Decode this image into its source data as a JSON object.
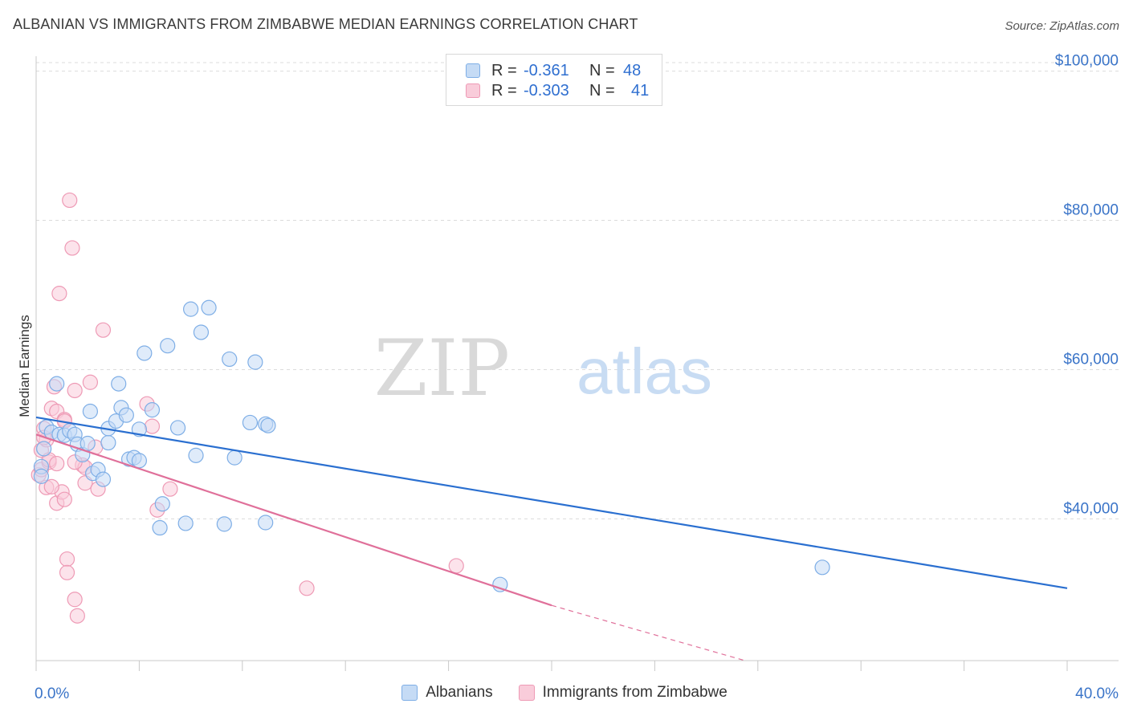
{
  "header": {
    "title": "ALBANIAN VS IMMIGRANTS FROM ZIMBABWE MEDIAN EARNINGS CORRELATION CHART",
    "source": "Source: ZipAtlas.com"
  },
  "legend_top": {
    "rows": [
      {
        "r_label": "R =",
        "r_value": "-0.361",
        "n_label": "N =",
        "n_value": "48"
      },
      {
        "r_label": "R =",
        "r_value": "-0.303",
        "n_label": "N =",
        "n_value": "41"
      }
    ]
  },
  "legend_bottom": {
    "items": [
      "Albanians",
      "Immigrants from Zimbabwe"
    ]
  },
  "watermark": {
    "part1": "ZIP",
    "part2": "atlas"
  },
  "colors": {
    "blue_fill": "#c5dbf5",
    "blue_stroke": "#7eaee6",
    "blue_line": "#2a6fd0",
    "pink_fill": "#f9ccda",
    "pink_stroke": "#ee9ab5",
    "pink_line": "#e0709a",
    "tick_label": "#3a74c8",
    "grid": "#dcdcdc"
  },
  "chart_data": {
    "type": "scatter",
    "title": "ALBANIAN VS IMMIGRANTS FROM ZIMBABWE MEDIAN EARNINGS CORRELATION CHART",
    "xlabel": "",
    "ylabel": "Median Earnings",
    "xlim": [
      0,
      40
    ],
    "ylim": [
      21000,
      102000
    ],
    "x_tick_labels": [
      "0.0%",
      "40.0%"
    ],
    "y_ticks": [
      40000,
      60000,
      80000,
      100000
    ],
    "y_tick_labels": [
      "$40,000",
      "$60,000",
      "$80,000",
      "$100,000"
    ],
    "grid": true,
    "legend_placement": "bottom",
    "series": [
      {
        "name": "Albanians",
        "r": -0.361,
        "n": 48,
        "trend": {
          "x": [
            0,
            40
          ],
          "y": [
            53600,
            30700
          ]
        },
        "points": [
          [
            0.2,
            47000
          ],
          [
            0.2,
            45700
          ],
          [
            0.3,
            49400
          ],
          [
            0.4,
            52300
          ],
          [
            0.6,
            51600
          ],
          [
            0.8,
            58100
          ],
          [
            0.9,
            51300
          ],
          [
            1.1,
            51200
          ],
          [
            1.3,
            51800
          ],
          [
            1.5,
            51300
          ],
          [
            1.6,
            50000
          ],
          [
            1.8,
            48600
          ],
          [
            2.0,
            50100
          ],
          [
            2.1,
            54400
          ],
          [
            2.2,
            46100
          ],
          [
            2.4,
            46600
          ],
          [
            2.6,
            45300
          ],
          [
            2.8,
            50200
          ],
          [
            2.8,
            52100
          ],
          [
            3.1,
            53100
          ],
          [
            3.2,
            58100
          ],
          [
            3.3,
            54900
          ],
          [
            3.5,
            53900
          ],
          [
            3.6,
            48000
          ],
          [
            3.8,
            48200
          ],
          [
            4.0,
            52000
          ],
          [
            4.0,
            47800
          ],
          [
            4.2,
            62200
          ],
          [
            4.5,
            54600
          ],
          [
            4.8,
            38800
          ],
          [
            4.9,
            42000
          ],
          [
            5.1,
            63200
          ],
          [
            5.5,
            52200
          ],
          [
            5.8,
            39400
          ],
          [
            6.0,
            68100
          ],
          [
            6.2,
            48500
          ],
          [
            6.4,
            65000
          ],
          [
            6.7,
            68300
          ],
          [
            7.3,
            39300
          ],
          [
            7.5,
            61400
          ],
          [
            7.7,
            48200
          ],
          [
            8.3,
            52900
          ],
          [
            8.5,
            61000
          ],
          [
            8.9,
            39500
          ],
          [
            8.9,
            52700
          ],
          [
            9.0,
            52500
          ],
          [
            18.0,
            31200
          ],
          [
            30.5,
            33500
          ]
        ]
      },
      {
        "name": "Immigrants from Zimbabwe",
        "r": -0.303,
        "n": 41,
        "trend": {
          "x": [
            0,
            20
          ],
          "y": [
            51300,
            28400
          ]
        },
        "trend_dashed": {
          "x": [
            20,
            27.5
          ],
          "y": [
            28400,
            21000
          ]
        },
        "points": [
          [
            0.1,
            45900
          ],
          [
            0.2,
            49200
          ],
          [
            0.2,
            46600
          ],
          [
            0.3,
            52100
          ],
          [
            0.4,
            44200
          ],
          [
            0.4,
            50600
          ],
          [
            0.5,
            47600
          ],
          [
            0.5,
            47900
          ],
          [
            0.6,
            54800
          ],
          [
            0.7,
            57700
          ],
          [
            0.8,
            47400
          ],
          [
            0.8,
            42100
          ],
          [
            0.8,
            54400
          ],
          [
            0.9,
            70200
          ],
          [
            1.0,
            43600
          ],
          [
            1.1,
            42600
          ],
          [
            1.1,
            53300
          ],
          [
            1.1,
            53100
          ],
          [
            1.2,
            34600
          ],
          [
            1.2,
            32800
          ],
          [
            1.3,
            82700
          ],
          [
            1.4,
            76300
          ],
          [
            1.5,
            57200
          ],
          [
            1.5,
            29200
          ],
          [
            1.6,
            27000
          ],
          [
            1.8,
            47200
          ],
          [
            1.9,
            46900
          ],
          [
            1.9,
            44800
          ],
          [
            2.1,
            58300
          ],
          [
            2.3,
            49600
          ],
          [
            2.4,
            44000
          ],
          [
            2.6,
            65300
          ],
          [
            4.3,
            55400
          ],
          [
            4.5,
            52400
          ],
          [
            4.7,
            41200
          ],
          [
            5.2,
            44000
          ],
          [
            10.5,
            30700
          ],
          [
            16.3,
            33700
          ],
          [
            1.5,
            47600
          ],
          [
            0.6,
            44300
          ],
          [
            0.3,
            50900
          ]
        ]
      }
    ]
  }
}
